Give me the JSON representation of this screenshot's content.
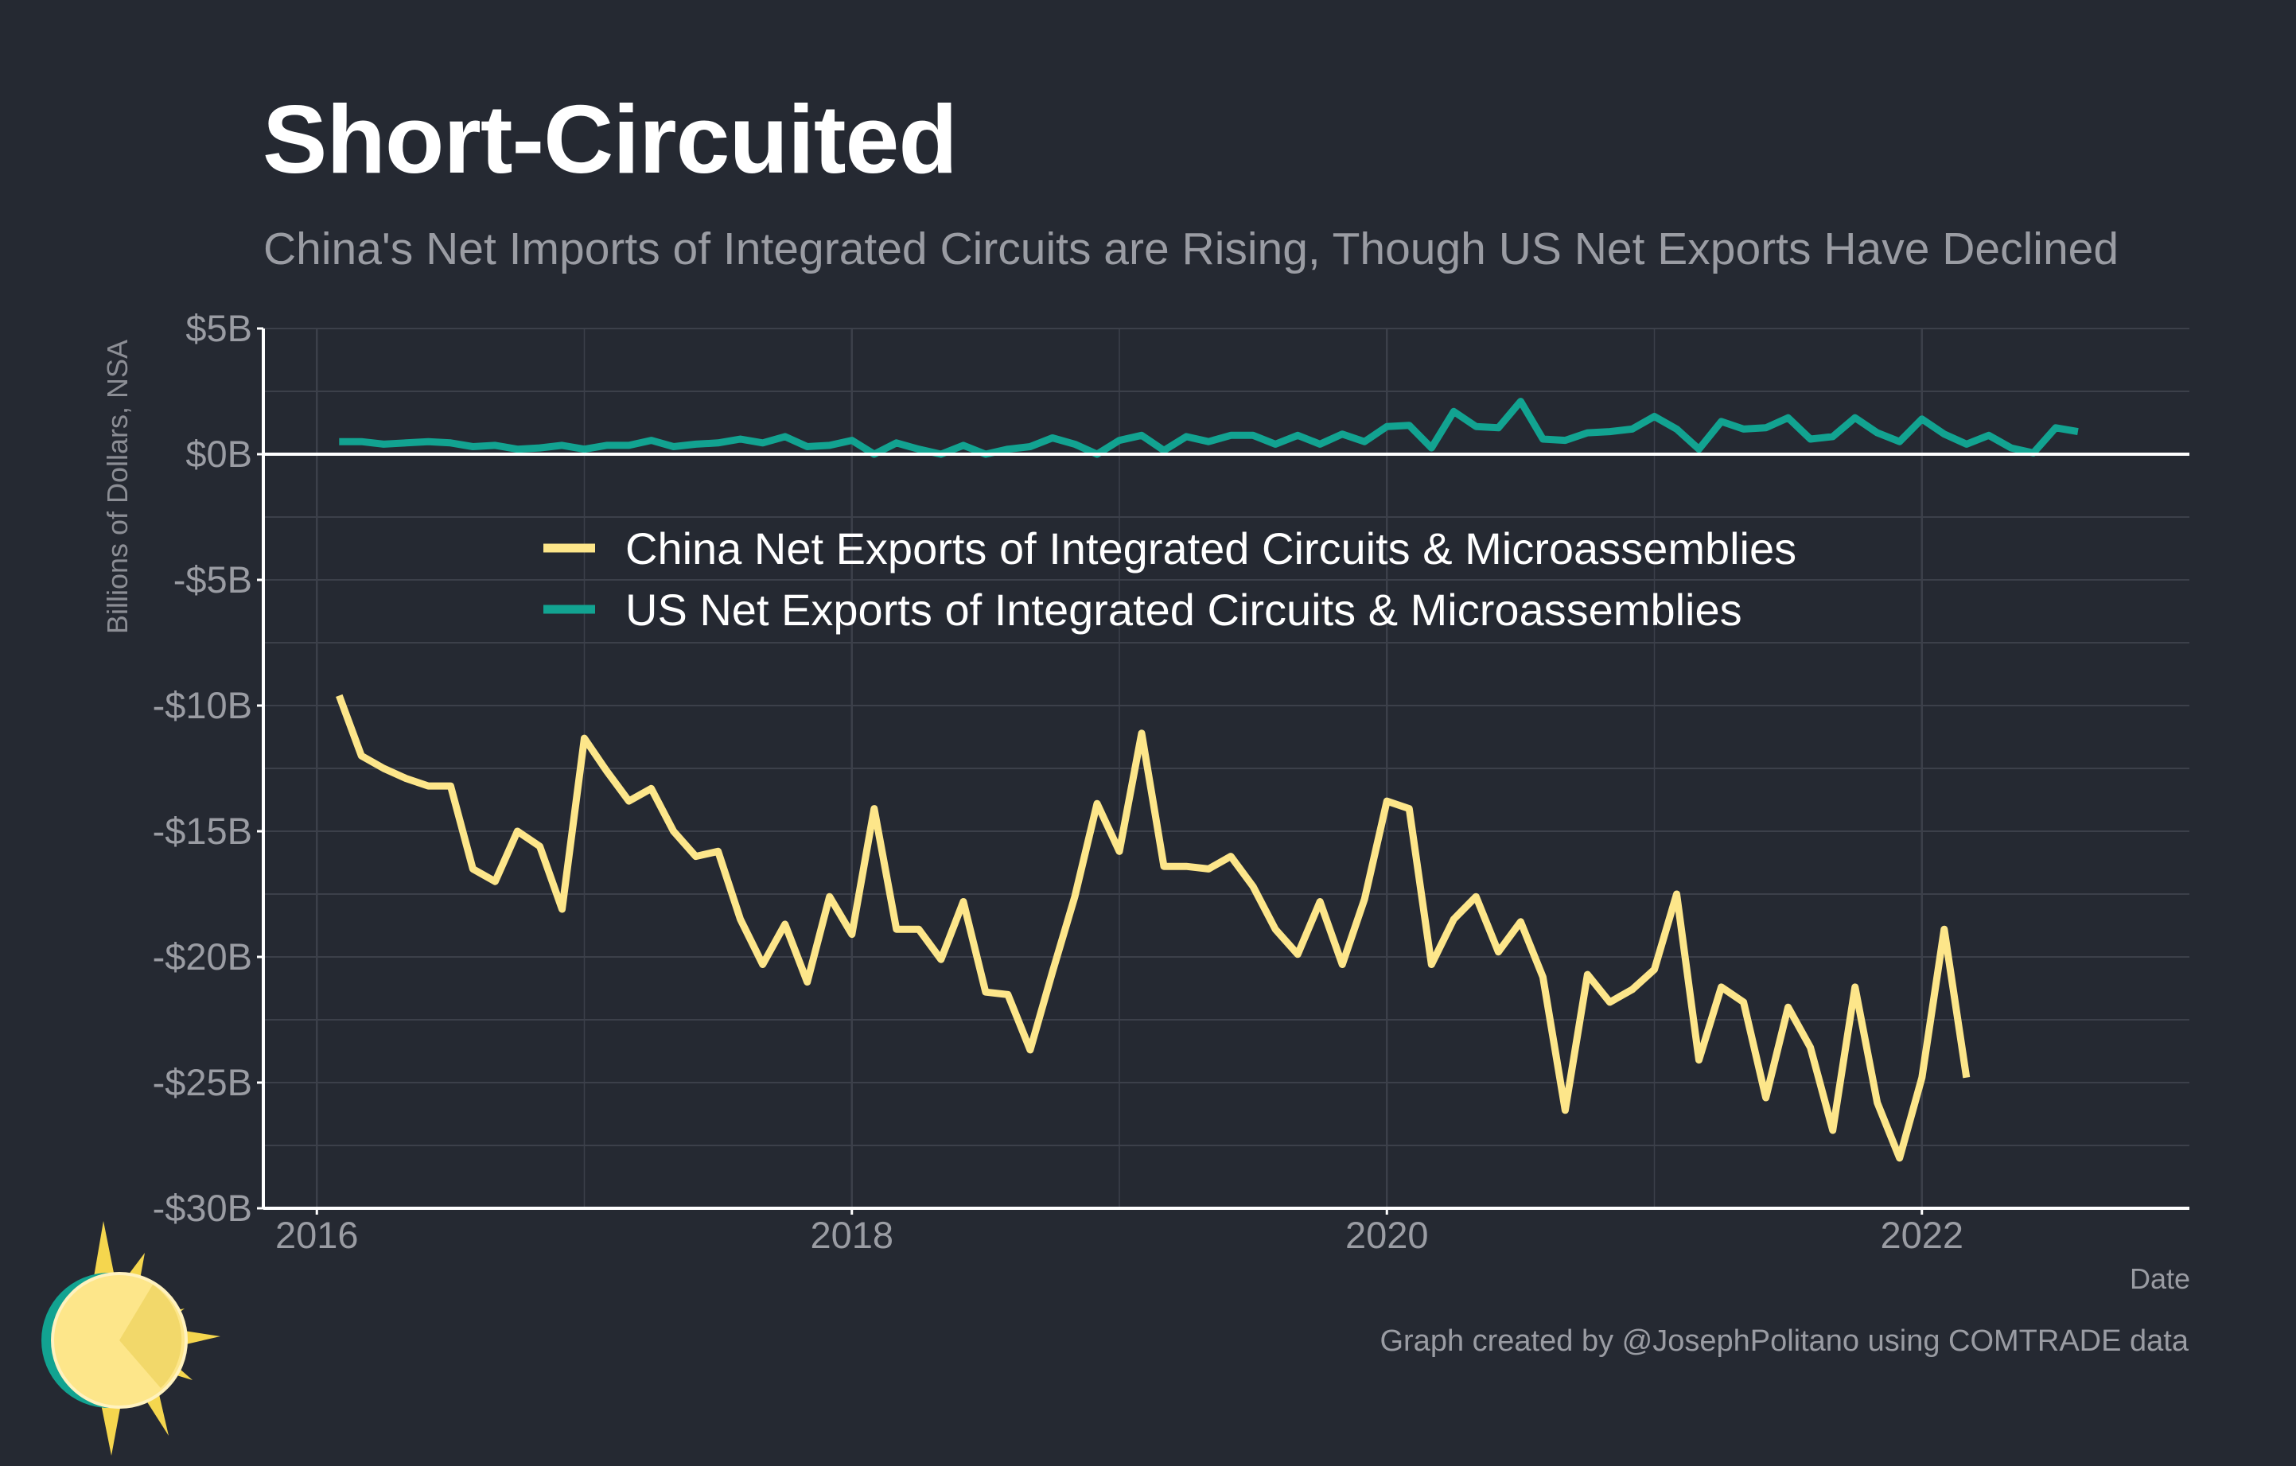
{
  "title": "Short-Circuited",
  "subtitle": "China's Net Imports of Integrated Circuits are Rising, Though US Net Exports Have Declined",
  "caption": "Graph created by @JosephPolitano using COMTRADE data",
  "colors": {
    "background": "#252932",
    "china": "#fde68a",
    "us": "#12a391",
    "grid": "#3c404a",
    "axis": "#ffffff"
  },
  "icons": {
    "logo": "sun-logo-icon"
  },
  "chart_data": {
    "type": "line",
    "xlabel": "Date",
    "ylabel": "Billions of Dollars, NSA",
    "xlim": [
      2015.8,
      2023.0
    ],
    "ylim": [
      -30,
      5
    ],
    "x_ticks": [
      2016,
      2018,
      2020,
      2022
    ],
    "x_tick_labels": [
      "2016",
      "2018",
      "2020",
      "2022"
    ],
    "y_ticks": [
      5,
      0,
      -5,
      -10,
      -15,
      -20,
      -25,
      -30
    ],
    "y_tick_labels": [
      "$5B",
      "$0B",
      "-$5B",
      "-$10B",
      "-$15B",
      "-$20B",
      "-$25B",
      "-$30B"
    ],
    "grid": true,
    "legend_position": "top-left",
    "series": [
      {
        "name": "China Net Exports of Integrated Circuits & Microassemblies",
        "color": "#fde68a",
        "x_start": "2016-02",
        "x_step": "month",
        "values": [
          -9.6,
          -12.0,
          -12.5,
          -12.9,
          -13.2,
          -13.2,
          -16.5,
          -17.0,
          -15.0,
          -15.6,
          -18.1,
          -11.3,
          -12.6,
          -13.8,
          -13.3,
          -15.0,
          -16.0,
          -15.8,
          -18.5,
          -20.3,
          -18.7,
          -21.0,
          -17.6,
          -19.1,
          -14.1,
          -18.9,
          -18.9,
          -20.1,
          -17.8,
          -21.4,
          -21.5,
          -23.7,
          -20.6,
          -17.6,
          -13.9,
          -15.8,
          -11.1,
          -16.4,
          -16.4,
          -16.5,
          -16.0,
          -17.2,
          -18.9,
          -19.9,
          -17.8,
          -20.3,
          -17.7,
          -13.8,
          -14.1,
          -20.3,
          -18.5,
          -17.6,
          -19.8,
          -18.6,
          -20.8,
          -26.1,
          -20.7,
          -21.8,
          -21.3,
          -20.5,
          -17.5,
          -24.1,
          -21.2,
          -21.8,
          -25.6,
          -22.0,
          -23.6,
          -26.9,
          -21.2,
          -25.8,
          -28.0,
          -24.8,
          -18.9,
          -24.8
        ]
      },
      {
        "name": "US Net Exports of Integrated Circuits & Microassemblies",
        "color": "#12a391",
        "x_start": "2016-02",
        "x_step": "month",
        "values": [
          0.5,
          0.5,
          0.4,
          0.45,
          0.5,
          0.45,
          0.3,
          0.35,
          0.2,
          0.25,
          0.35,
          0.2,
          0.35,
          0.35,
          0.55,
          0.3,
          0.4,
          0.45,
          0.6,
          0.45,
          0.7,
          0.3,
          0.35,
          0.55,
          0.0,
          0.45,
          0.2,
          0.0,
          0.35,
          0.0,
          0.2,
          0.3,
          0.65,
          0.4,
          0.0,
          0.55,
          0.75,
          0.15,
          0.7,
          0.5,
          0.75,
          0.75,
          0.4,
          0.75,
          0.4,
          0.8,
          0.5,
          1.1,
          1.15,
          0.25,
          1.7,
          1.1,
          1.05,
          2.1,
          0.6,
          0.55,
          0.85,
          0.9,
          1.0,
          1.5,
          1.0,
          0.2,
          1.3,
          1.0,
          1.05,
          1.45,
          0.6,
          0.7,
          1.45,
          0.85,
          0.5,
          1.4,
          0.8,
          0.4,
          0.75,
          0.25,
          0.05,
          1.05,
          0.9
        ]
      }
    ]
  }
}
